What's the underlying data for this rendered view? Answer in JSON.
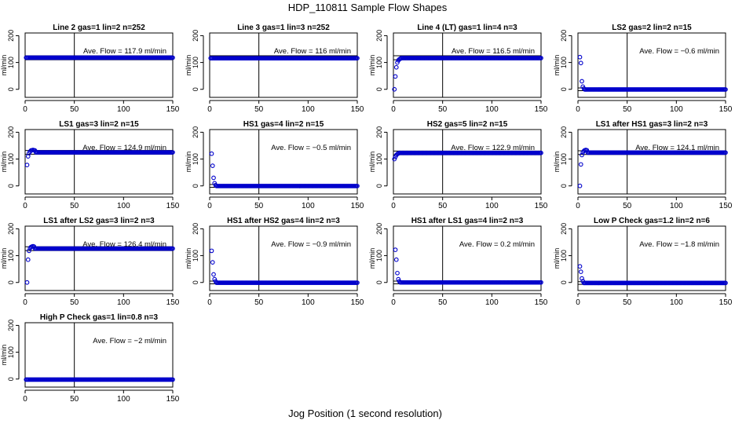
{
  "title": "HDP_110811  Sample Flow Shapes",
  "xlabel": "Jog Position (1 second resolution)",
  "colors": {
    "points": "#0000cc",
    "axes": "#000000"
  },
  "panel_template": {
    "ylabel": "ml/min",
    "ave_prefix": "Ave. Flow = ",
    "ave_unit": "ml/min"
  },
  "chart_data": [
    {
      "type": "scatter",
      "title": "Line 2 gas=1 lin=2 n=252",
      "ave_flow": "117.9",
      "xlim": [
        0,
        150
      ],
      "ylim": [
        -30,
        210
      ],
      "xticks": [
        0,
        50,
        100,
        150
      ],
      "yticks": [
        0,
        100,
        200
      ],
      "vline_x": 50,
      "hlines_y": [
        110,
        125
      ],
      "transient": [],
      "plateau": 118
    },
    {
      "type": "scatter",
      "title": "Line 3 gas=1 lin=3 n=252",
      "ave_flow": "116",
      "xlim": [
        0,
        150
      ],
      "ylim": [
        -30,
        210
      ],
      "xticks": [
        0,
        50,
        100,
        150
      ],
      "yticks": [
        0,
        100,
        200
      ],
      "vline_x": 50,
      "hlines_y": [
        110,
        125
      ],
      "transient": [],
      "plateau": 116
    },
    {
      "type": "scatter",
      "title": "Line 4 (LT) gas=1 lin=4 n=3",
      "ave_flow": "116.5",
      "xlim": [
        0,
        150
      ],
      "ylim": [
        -30,
        210
      ],
      "xticks": [
        0,
        50,
        100,
        150
      ],
      "yticks": [
        0,
        100,
        200
      ],
      "vline_x": 50,
      "hlines_y": [
        110,
        125
      ],
      "transient": [
        [
          1,
          0
        ],
        [
          2,
          48
        ],
        [
          3,
          82
        ],
        [
          4,
          100
        ],
        [
          5,
          108
        ],
        [
          6,
          112
        ],
        [
          7,
          114
        ]
      ],
      "plateau": 116.5
    },
    {
      "type": "scatter",
      "title": "LS2 gas=2 lin=2 n=15",
      "ave_flow": "−0.6",
      "xlim": [
        0,
        150
      ],
      "ylim": [
        -30,
        210
      ],
      "xticks": [
        0,
        50,
        100,
        150
      ],
      "yticks": [
        0,
        100,
        200
      ],
      "vline_x": 50,
      "hlines_y": [
        -5,
        5
      ],
      "transient": [
        [
          2,
          120
        ],
        [
          3,
          98
        ],
        [
          4,
          30
        ],
        [
          5,
          10
        ],
        [
          6,
          3
        ]
      ],
      "plateau": -0.6
    },
    {
      "type": "scatter",
      "title": "LS1 gas=3 lin=2 n=15",
      "ave_flow": "124.9",
      "xlim": [
        0,
        150
      ],
      "ylim": [
        -30,
        210
      ],
      "xticks": [
        0,
        50,
        100,
        150
      ],
      "yticks": [
        0,
        100,
        200
      ],
      "vline_x": 50,
      "hlines_y": [
        118,
        132
      ],
      "transient": [
        [
          2,
          78
        ],
        [
          3,
          110
        ],
        [
          4,
          122
        ],
        [
          5,
          128
        ],
        [
          6,
          132
        ],
        [
          7,
          133
        ],
        [
          8,
          134
        ],
        [
          9,
          133
        ],
        [
          10,
          132
        ]
      ],
      "plateau": 125
    },
    {
      "type": "scatter",
      "title": "HS1 gas=4 lin=2 n=15",
      "ave_flow": "−0.5",
      "xlim": [
        0,
        150
      ],
      "ylim": [
        -30,
        210
      ],
      "xticks": [
        0,
        50,
        100,
        150
      ],
      "yticks": [
        0,
        100,
        200
      ],
      "vline_x": 50,
      "hlines_y": [
        -5,
        5
      ],
      "transient": [
        [
          2,
          120
        ],
        [
          3,
          75
        ],
        [
          4,
          30
        ],
        [
          5,
          10
        ],
        [
          6,
          3
        ]
      ],
      "plateau": -0.5
    },
    {
      "type": "scatter",
      "title": "HS2 gas=5 lin=2 n=15",
      "ave_flow": "122.9",
      "xlim": [
        0,
        150
      ],
      "ylim": [
        -30,
        210
      ],
      "xticks": [
        0,
        50,
        100,
        150
      ],
      "yticks": [
        0,
        100,
        200
      ],
      "vline_x": 50,
      "hlines_y": [
        116,
        130
      ],
      "transient": [
        [
          1,
          100
        ],
        [
          2,
          108
        ],
        [
          3,
          115
        ],
        [
          4,
          119
        ],
        [
          5,
          121
        ]
      ],
      "plateau": 123
    },
    {
      "type": "scatter",
      "title": "LS1 after HS1 gas=3 lin=2 n=3",
      "ave_flow": "124.1",
      "xlim": [
        0,
        150
      ],
      "ylim": [
        -30,
        210
      ],
      "xticks": [
        0,
        50,
        100,
        150
      ],
      "yticks": [
        0,
        100,
        200
      ],
      "vline_x": 50,
      "hlines_y": [
        117,
        131
      ],
      "transient": [
        [
          2,
          0
        ],
        [
          3,
          80
        ],
        [
          4,
          115
        ],
        [
          5,
          125
        ],
        [
          6,
          130
        ],
        [
          7,
          133
        ],
        [
          8,
          134
        ],
        [
          9,
          133
        ]
      ],
      "plateau": 124
    },
    {
      "type": "scatter",
      "title": "LS1 after LS2 gas=3 lin=2 n=3",
      "ave_flow": "126.4",
      "xlim": [
        0,
        150
      ],
      "ylim": [
        -30,
        210
      ],
      "xticks": [
        0,
        50,
        100,
        150
      ],
      "yticks": [
        0,
        100,
        200
      ],
      "vline_x": 50,
      "hlines_y": [
        119,
        133
      ],
      "transient": [
        [
          2,
          0
        ],
        [
          3,
          85
        ],
        [
          4,
          118
        ],
        [
          5,
          128
        ],
        [
          6,
          132
        ],
        [
          7,
          134
        ],
        [
          8,
          135
        ],
        [
          9,
          134
        ]
      ],
      "plateau": 126.4
    },
    {
      "type": "scatter",
      "title": "HS1 after HS2 gas=4 lin=2 n=3",
      "ave_flow": "−0.9",
      "xlim": [
        0,
        150
      ],
      "ylim": [
        -30,
        210
      ],
      "xticks": [
        0,
        50,
        100,
        150
      ],
      "yticks": [
        0,
        100,
        200
      ],
      "vline_x": 50,
      "hlines_y": [
        -5,
        5
      ],
      "transient": [
        [
          2,
          118
        ],
        [
          3,
          75
        ],
        [
          4,
          30
        ],
        [
          5,
          12
        ],
        [
          6,
          4
        ]
      ],
      "plateau": -0.9
    },
    {
      "type": "scatter",
      "title": "HS1 after LS1 gas=4 lin=2 n=3",
      "ave_flow": "0.2",
      "xlim": [
        0,
        150
      ],
      "ylim": [
        -30,
        210
      ],
      "xticks": [
        0,
        50,
        100,
        150
      ],
      "yticks": [
        0,
        100,
        200
      ],
      "vline_x": 50,
      "hlines_y": [
        -5,
        5
      ],
      "transient": [
        [
          2,
          122
        ],
        [
          3,
          85
        ],
        [
          4,
          35
        ],
        [
          5,
          12
        ],
        [
          6,
          4
        ]
      ],
      "plateau": 0.2
    },
    {
      "type": "scatter",
      "title": "Low P Check gas=1.2 lin=2 n=6",
      "ave_flow": "−1.8",
      "xlim": [
        0,
        150
      ],
      "ylim": [
        -30,
        210
      ],
      "xticks": [
        0,
        50,
        100,
        150
      ],
      "yticks": [
        0,
        100,
        200
      ],
      "vline_x": 50,
      "hlines_y": [
        -7,
        3
      ],
      "transient": [
        [
          2,
          60
        ],
        [
          3,
          40
        ],
        [
          4,
          15
        ],
        [
          5,
          5
        ]
      ],
      "plateau": -1.8
    },
    {
      "type": "scatter",
      "title": "High P Check gas=1 lin=0.8 n=3",
      "ave_flow": "−2",
      "xlim": [
        0,
        150
      ],
      "ylim": [
        -30,
        210
      ],
      "xticks": [
        0,
        50,
        100,
        150
      ],
      "yticks": [
        0,
        100,
        200
      ],
      "vline_x": 50,
      "hlines_y": [
        -8,
        4
      ],
      "transient": [],
      "plateau": -2
    }
  ]
}
